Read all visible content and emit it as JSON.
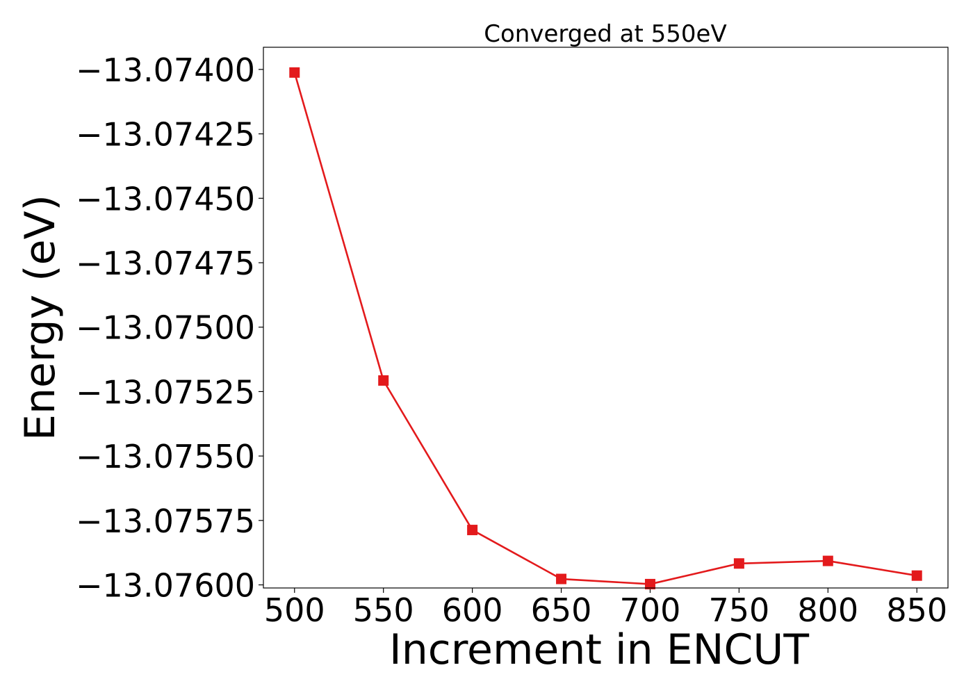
{
  "chart_data": {
    "type": "line",
    "title": "Converged at 550eV",
    "xlabel": "Increment in ENCUT",
    "ylabel": "Energy (eV)",
    "xlim": [
      482.5,
      867.5
    ],
    "ylim": [
      -13.076012,
      -13.073914
    ],
    "x_ticks": [
      500,
      550,
      600,
      650,
      700,
      750,
      800,
      850
    ],
    "x_tick_labels": [
      "500",
      "550",
      "600",
      "650",
      "700",
      "750",
      "800",
      "850"
    ],
    "y_ticks": [
      -13.074,
      -13.07425,
      -13.0745,
      -13.07475,
      -13.075,
      -13.07525,
      -13.0755,
      -13.07575,
      -13.076
    ],
    "y_tick_labels": [
      "−13.07400",
      "−13.07425",
      "−13.07450",
      "−13.07475",
      "−13.07500",
      "−13.07525",
      "−13.07550",
      "−13.07575",
      "−13.07600"
    ],
    "grid": false,
    "series": [
      {
        "color": "#e31a1c",
        "marker": "square",
        "x": [
          500,
          550,
          600,
          650,
          700,
          750,
          800,
          850
        ],
        "y": [
          -13.074012,
          -13.075207,
          -13.075787,
          -13.075977,
          -13.075997,
          -13.075917,
          -13.075907,
          -13.075964
        ]
      }
    ]
  }
}
